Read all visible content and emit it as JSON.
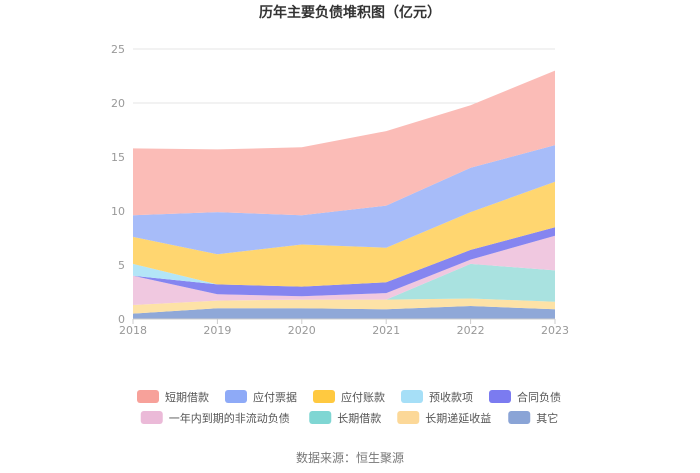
{
  "chart_data": {
    "type": "area",
    "stacked": true,
    "title": "历年主要负债堆积图（亿元）",
    "x": [
      "2018",
      "2019",
      "2020",
      "2021",
      "2022",
      "2023"
    ],
    "ylim": [
      0,
      25
    ],
    "yticks": [
      0,
      5,
      10,
      15,
      20,
      25
    ],
    "grid": true,
    "legend_position": "bottom",
    "series": [
      {
        "name": "其它",
        "color": "#8fa8d8",
        "values": [
          0.5,
          1.0,
          1.0,
          0.9,
          1.2,
          0.9
        ]
      },
      {
        "name": "长期递延收益",
        "color": "#fde2a6",
        "values": [
          0.8,
          0.7,
          0.8,
          0.9,
          0.7,
          0.7
        ]
      },
      {
        "name": "长期借款",
        "color": "#a9e2e0",
        "values": [
          0.0,
          0.0,
          0.0,
          0.0,
          3.2,
          2.9
        ]
      },
      {
        "name": "一年内到期的非流动负债",
        "color": "#f0c8e0",
        "values": [
          2.7,
          0.6,
          0.3,
          0.6,
          0.4,
          3.2
        ]
      },
      {
        "name": "合同负债",
        "color": "#8585f0",
        "values": [
          0.0,
          0.9,
          0.9,
          1.0,
          0.9,
          0.8
        ]
      },
      {
        "name": "预收款项",
        "color": "#b3e5f7",
        "values": [
          1.1,
          0.0,
          0.0,
          0.0,
          0.0,
          0.0
        ]
      },
      {
        "name": "应付账款",
        "color": "#ffd670",
        "values": [
          2.5,
          2.8,
          3.9,
          3.2,
          3.5,
          4.2
        ]
      },
      {
        "name": "应付票据",
        "color": "#a7bcf9",
        "values": [
          2.0,
          3.9,
          2.7,
          3.9,
          4.1,
          3.4
        ]
      },
      {
        "name": "短期借款",
        "color": "#fbbcb7",
        "values": [
          6.2,
          5.8,
          6.3,
          6.9,
          5.8,
          6.9
        ]
      }
    ],
    "legend_order": [
      "短期借款",
      "应付票据",
      "应付账款",
      "预收款项",
      "合同负债",
      "一年内到期的非流动负债",
      "长期借款",
      "长期递延收益",
      "其它"
    ],
    "legend_colors": {
      "短期借款": "#f7a19a",
      "应付票据": "#8eaaf7",
      "应付账款": "#ffc940",
      "预收款项": "#a6dff7",
      "合同负债": "#7b7bf0",
      "一年内到期的非流动负债": "#ebbad8",
      "长期借款": "#7fd6d3",
      "长期递延收益": "#fcd898",
      "其它": "#8aa4d6"
    }
  },
  "source": "数据来源：恒生聚源"
}
